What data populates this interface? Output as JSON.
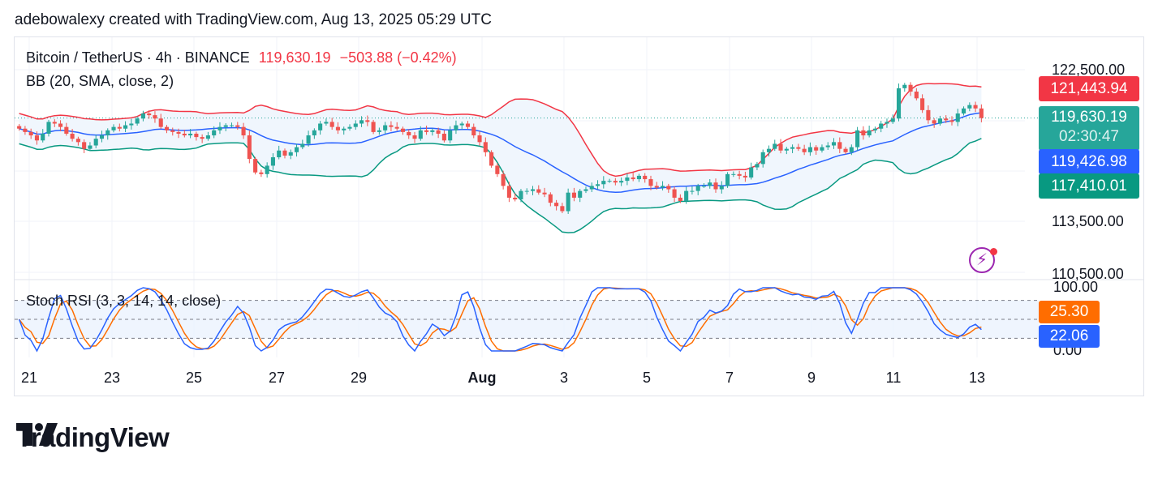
{
  "header": {
    "text": "adebowalexy created with TradingView.com, Aug 13, 2025 05:29 UTC"
  },
  "legend": {
    "symbol": "Bitcoin / TetherUS · 4h · BINANCE",
    "price": "119,630.19",
    "change": "−503.88 (−0.42%)",
    "bb": "BB (20, SMA, close, 2)",
    "stoch": "Stoch RSI (3, 3, 14, 14, close)"
  },
  "colors": {
    "up": "#26a69a",
    "down": "#ef5350",
    "bb_upper": "#f23645",
    "bb_basis": "#2962ff",
    "bb_lower": "#089981",
    "bb_fill": "#f0f6fd",
    "stoch_k": "#2962ff",
    "stoch_d": "#ff6d00"
  },
  "price_axis": {
    "ticks": [
      "122,500.00",
      "113,500.00",
      "110,500.00"
    ],
    "tags": {
      "upper": "121,443.94",
      "last": "119,630.19",
      "countdown": "02:30:47",
      "basis": "119,426.98",
      "lower": "117,410.01"
    }
  },
  "stoch_axis": {
    "ticks": [
      "100.00",
      "0.00"
    ],
    "tags": {
      "d": "25.30",
      "k": "22.06"
    }
  },
  "x_axis": {
    "ticks": [
      "21",
      "23",
      "25",
      "27",
      "29",
      "Aug",
      "3",
      "5",
      "7",
      "9",
      "11",
      "13"
    ]
  },
  "logo": {
    "text": "TradingView"
  },
  "chart_data": [
    {
      "type": "candlestick",
      "title": "Bitcoin / TetherUS · 4h · BINANCE",
      "ylim": [
        110500,
        123500
      ],
      "x_ticks": [
        "21",
        "23",
        "25",
        "27",
        "29",
        "Aug",
        "3",
        "5",
        "7",
        "9",
        "11",
        "13"
      ],
      "close": [
        119000,
        118800,
        118600,
        118300,
        118700,
        119400,
        119300,
        119100,
        118700,
        118400,
        118200,
        117800,
        118000,
        118400,
        118600,
        118900,
        119100,
        119000,
        119200,
        119300,
        119600,
        119900,
        119800,
        119600,
        119100,
        118900,
        118800,
        118700,
        118600,
        118700,
        118500,
        118400,
        118600,
        118900,
        119100,
        119200,
        119200,
        119100,
        118600,
        117200,
        116400,
        116300,
        116800,
        117300,
        117700,
        117400,
        117600,
        117900,
        118100,
        118600,
        118900,
        119300,
        119400,
        119100,
        118900,
        119000,
        119100,
        119300,
        119500,
        119400,
        118800,
        118900,
        119200,
        119100,
        119000,
        118800,
        118600,
        118400,
        118900,
        118800,
        118900,
        118700,
        118300,
        118900,
        119200,
        119300,
        119100,
        118600,
        118200,
        117600,
        116800,
        116300,
        115600,
        114900,
        114800,
        115300,
        115300,
        115400,
        115200,
        115100,
        114600,
        114400,
        114100,
        115200,
        114900,
        115300,
        115400,
        115600,
        115700,
        115900,
        115900,
        115800,
        115900,
        116100,
        116000,
        116200,
        116000,
        115600,
        115500,
        115600,
        115400,
        114900,
        114700,
        115300,
        115300,
        115600,
        115600,
        115800,
        115400,
        115600,
        116300,
        116300,
        116200,
        116100,
        116700,
        116900,
        117600,
        117800,
        118100,
        117700,
        117800,
        117900,
        117800,
        117600,
        117900,
        117700,
        117900,
        118000,
        118200,
        117800,
        117600,
        117900,
        118900,
        118600,
        118900,
        119000,
        119300,
        119400,
        119600,
        121400,
        121600,
        121200,
        120800,
        120100,
        119500,
        119300,
        119600,
        119500,
        119400,
        119900,
        120200,
        120400,
        120200,
        119630
      ]
    },
    {
      "type": "line",
      "title": "BB (20, SMA, close, 2)",
      "series_note": "Bollinger bands from the close series (upper, basis, lower)"
    },
    {
      "type": "line",
      "title": "Stoch RSI (3, 3, 14, 14, close)",
      "ylim": [
        0,
        100
      ],
      "guides": [
        80,
        50,
        20
      ]
    }
  ]
}
